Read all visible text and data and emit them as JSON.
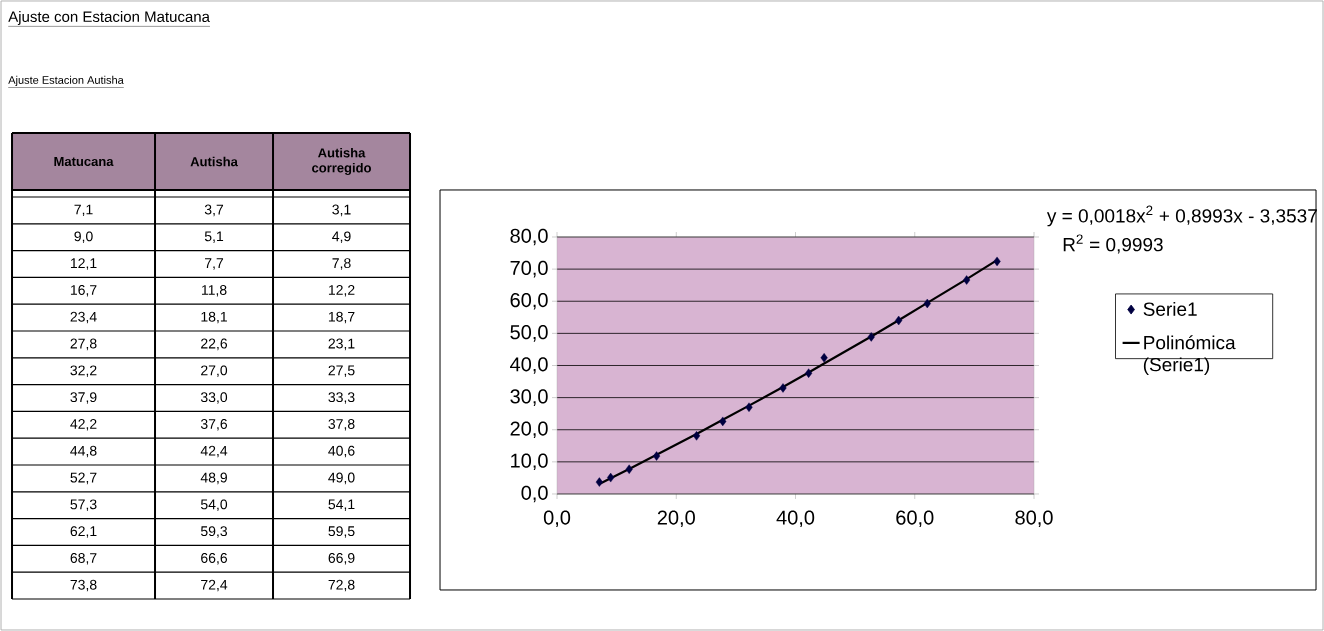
{
  "chart_data": [
    {
      "type": "other",
      "title": "Ajuste con Estacion Matucana",
      "subtitle": "Ajuste Estacion Autisha",
      "categories": [
        "Matucana",
        "Autisha",
        "Autisha corregido"
      ],
      "annotations": [
        "7,1",
        "3,7",
        "3,1",
        "9,0",
        "5,1",
        "4,9",
        "12,1",
        "7,7",
        "7,8",
        "16,7",
        "11,8",
        "12,2",
        "23,4",
        "18,1",
        "18,7",
        "27,8",
        "22,6",
        "23,1",
        "32,2",
        "27,0",
        "27,5",
        "37,9",
        "33,0",
        "33,3",
        "42,2",
        "37,6",
        "37,8",
        "44,8",
        "42,4",
        "40,6",
        "52,7",
        "48,9",
        "49,0",
        "57,3",
        "54,0",
        "54,1",
        "62,1",
        "59,3",
        "59,5",
        "68,7",
        "66,6",
        "66,9",
        "73,8",
        "72,4",
        "72,8"
      ]
    },
    {
      "type": "scatter",
      "annotations": [
        "y = 0,0018x$^{2}$ + 0,8993x - 3,3537",
        "R$^{2}$ = 0,9993"
      ],
      "series": [
        {
          "name": "Serie1",
          "type": "scatter",
          "color": "#000040",
          "marker": "diamond",
          "x": [
            7.1,
            9.0,
            12.1,
            16.7,
            23.4,
            27.8,
            32.2,
            37.9,
            42.2,
            44.8,
            52.7,
            57.3,
            62.1,
            68.7,
            73.8
          ],
          "values": [
            3.7,
            5.1,
            7.7,
            11.8,
            18.1,
            22.6,
            27.0,
            33.0,
            37.6,
            42.4,
            48.9,
            54.0,
            59.3,
            66.6,
            72.4
          ]
        },
        {
          "name": "Polinómica (Serie1)",
          "type": "line",
          "color": "#000000",
          "line_style": "solid",
          "x": [
            7.1,
            9.0,
            12.1,
            16.7,
            23.4,
            27.8,
            32.2,
            37.9,
            42.2,
            44.8,
            52.7,
            57.3,
            62.1,
            68.7,
            73.8
          ],
          "values": [
            3.1,
            4.9,
            7.8,
            12.2,
            18.7,
            23.1,
            27.5,
            33.3,
            37.8,
            40.6,
            49.0,
            54.1,
            59.5,
            66.9,
            72.8
          ]
        }
      ],
      "xlim": [
        0,
        80
      ],
      "ylim": [
        0,
        80
      ],
      "xticks": [
        {
          "value": 0,
          "label": "0,0"
        },
        {
          "value": 20,
          "label": "20,0"
        },
        {
          "value": 40,
          "label": "40,0"
        },
        {
          "value": 60,
          "label": "60,0"
        },
        {
          "value": 80,
          "label": "80,0"
        }
      ],
      "yticks": [
        {
          "value": 0,
          "label": "0,0"
        },
        {
          "value": 10,
          "label": "10,0"
        },
        {
          "value": 20,
          "label": "20,0"
        },
        {
          "value": 30,
          "label": "30,0"
        },
        {
          "value": 40,
          "label": "40,0"
        },
        {
          "value": 50,
          "label": "50,0"
        },
        {
          "value": 60,
          "label": "60,0"
        },
        {
          "value": 70,
          "label": "70,0"
        },
        {
          "value": 80,
          "label": "80,0"
        }
      ],
      "grid": "y",
      "legend": "right"
    }
  ]
}
